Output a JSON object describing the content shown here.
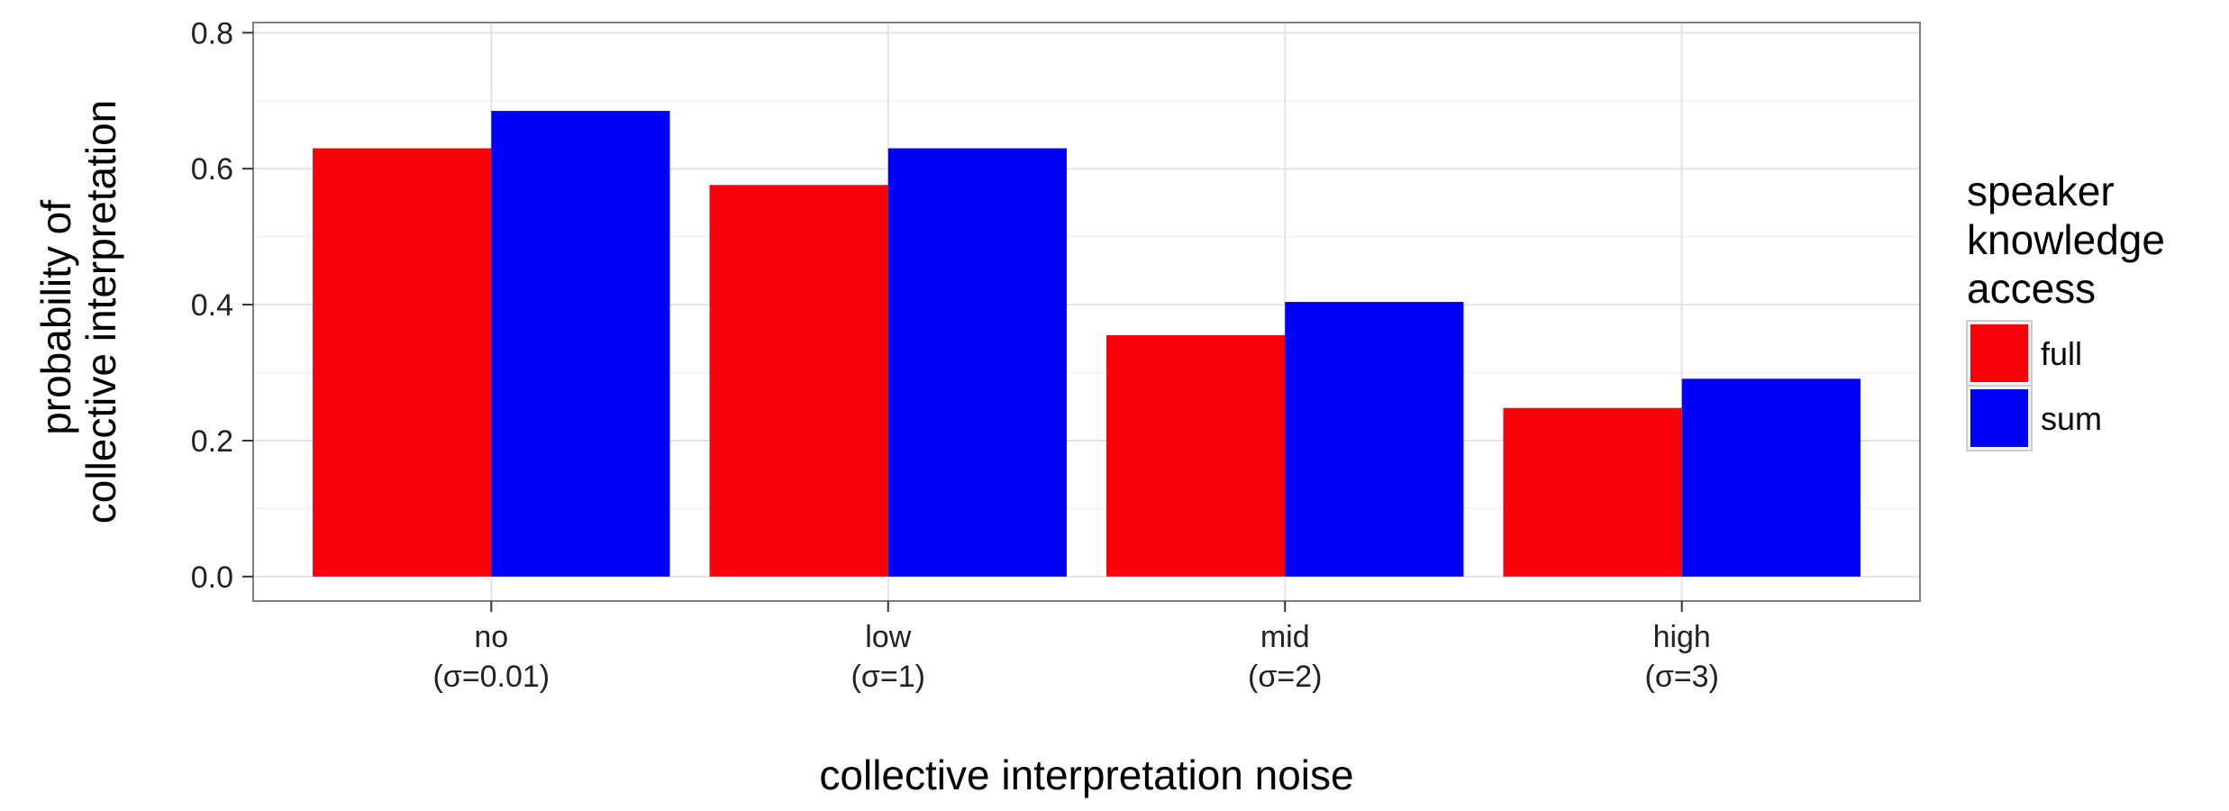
{
  "chart_data": {
    "type": "bar",
    "title": "",
    "xlabel": "collective interpretation noise",
    "ylabel": [
      "probability of",
      "collective interpretation"
    ],
    "categories": [
      [
        "no",
        "(σ=0.01)"
      ],
      [
        "low",
        "(σ=1)"
      ],
      [
        "mid",
        "(σ=2)"
      ],
      [
        "high",
        "(σ=3)"
      ]
    ],
    "series": [
      {
        "name": "full",
        "color": "#fa0008",
        "values": [
          0.63,
          0.576,
          0.355,
          0.248
        ]
      },
      {
        "name": "sum",
        "color": "#0000fa",
        "values": [
          0.685,
          0.63,
          0.404,
          0.291
        ]
      }
    ],
    "ylim": [
      -0.036,
      0.815
    ],
    "yticks": [
      0.0,
      0.2,
      0.4,
      0.6,
      0.8
    ],
    "ytick_labels": [
      "0.0",
      "0.2",
      "0.4",
      "0.6",
      "0.8"
    ],
    "grid": true,
    "legend": {
      "title": [
        "speaker",
        "knowledge",
        "access"
      ],
      "position": "right"
    }
  }
}
